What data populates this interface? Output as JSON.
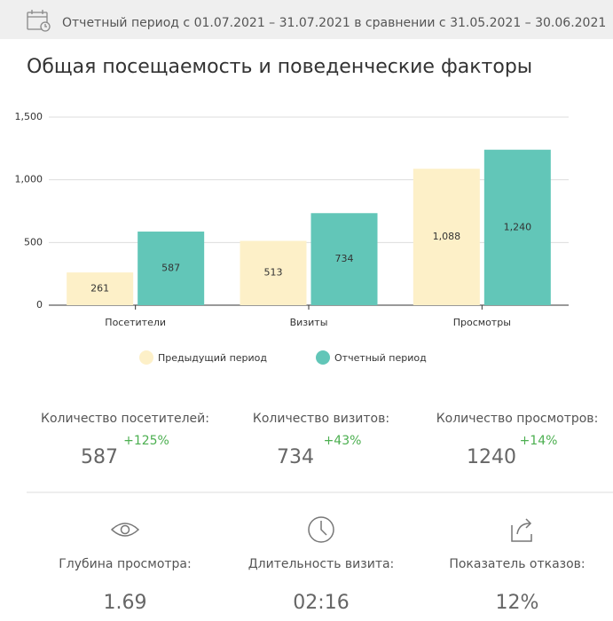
{
  "header": {
    "period": "Отчетный период с 01.07.2021 – 31.07.2021 в сравнении с 31.05.2021 – 30.06.2021"
  },
  "title": "Общая посещаемость и поведенческие факторы",
  "chart_data": {
    "type": "bar",
    "categories": [
      "Посетители",
      "Визиты",
      "Просмотры"
    ],
    "series": [
      {
        "name": "Предыдущий период",
        "color": "#fdf0c8",
        "values": [
          261,
          513,
          1088
        ],
        "value_labels": [
          "261",
          "513",
          "1,088"
        ]
      },
      {
        "name": "Отчетный период",
        "color": "#62c6b8",
        "values": [
          587,
          734,
          1240
        ],
        "value_labels": [
          "587",
          "734",
          "1,240"
        ]
      }
    ],
    "ylim": [
      0,
      1500
    ],
    "yticks": [
      0,
      500,
      {
        "value": 1000,
        "label": "1,000"
      },
      {
        "value": 1500,
        "label": "1,500"
      }
    ],
    "grid": true
  },
  "stats": [
    {
      "label": "Количество посетителей:",
      "value": "587",
      "change": "+125%"
    },
    {
      "label": "Количество визитов:",
      "value": "734",
      "change": "+43%"
    },
    {
      "label": "Количество просмотров:",
      "value": "1240",
      "change": "+14%"
    }
  ],
  "metrics": [
    {
      "label": "Глубина просмотра:",
      "value": "1.69"
    },
    {
      "label": "Длительность визита:",
      "value": "02:16"
    },
    {
      "label": "Показатель отказов:",
      "value": "12%"
    }
  ]
}
